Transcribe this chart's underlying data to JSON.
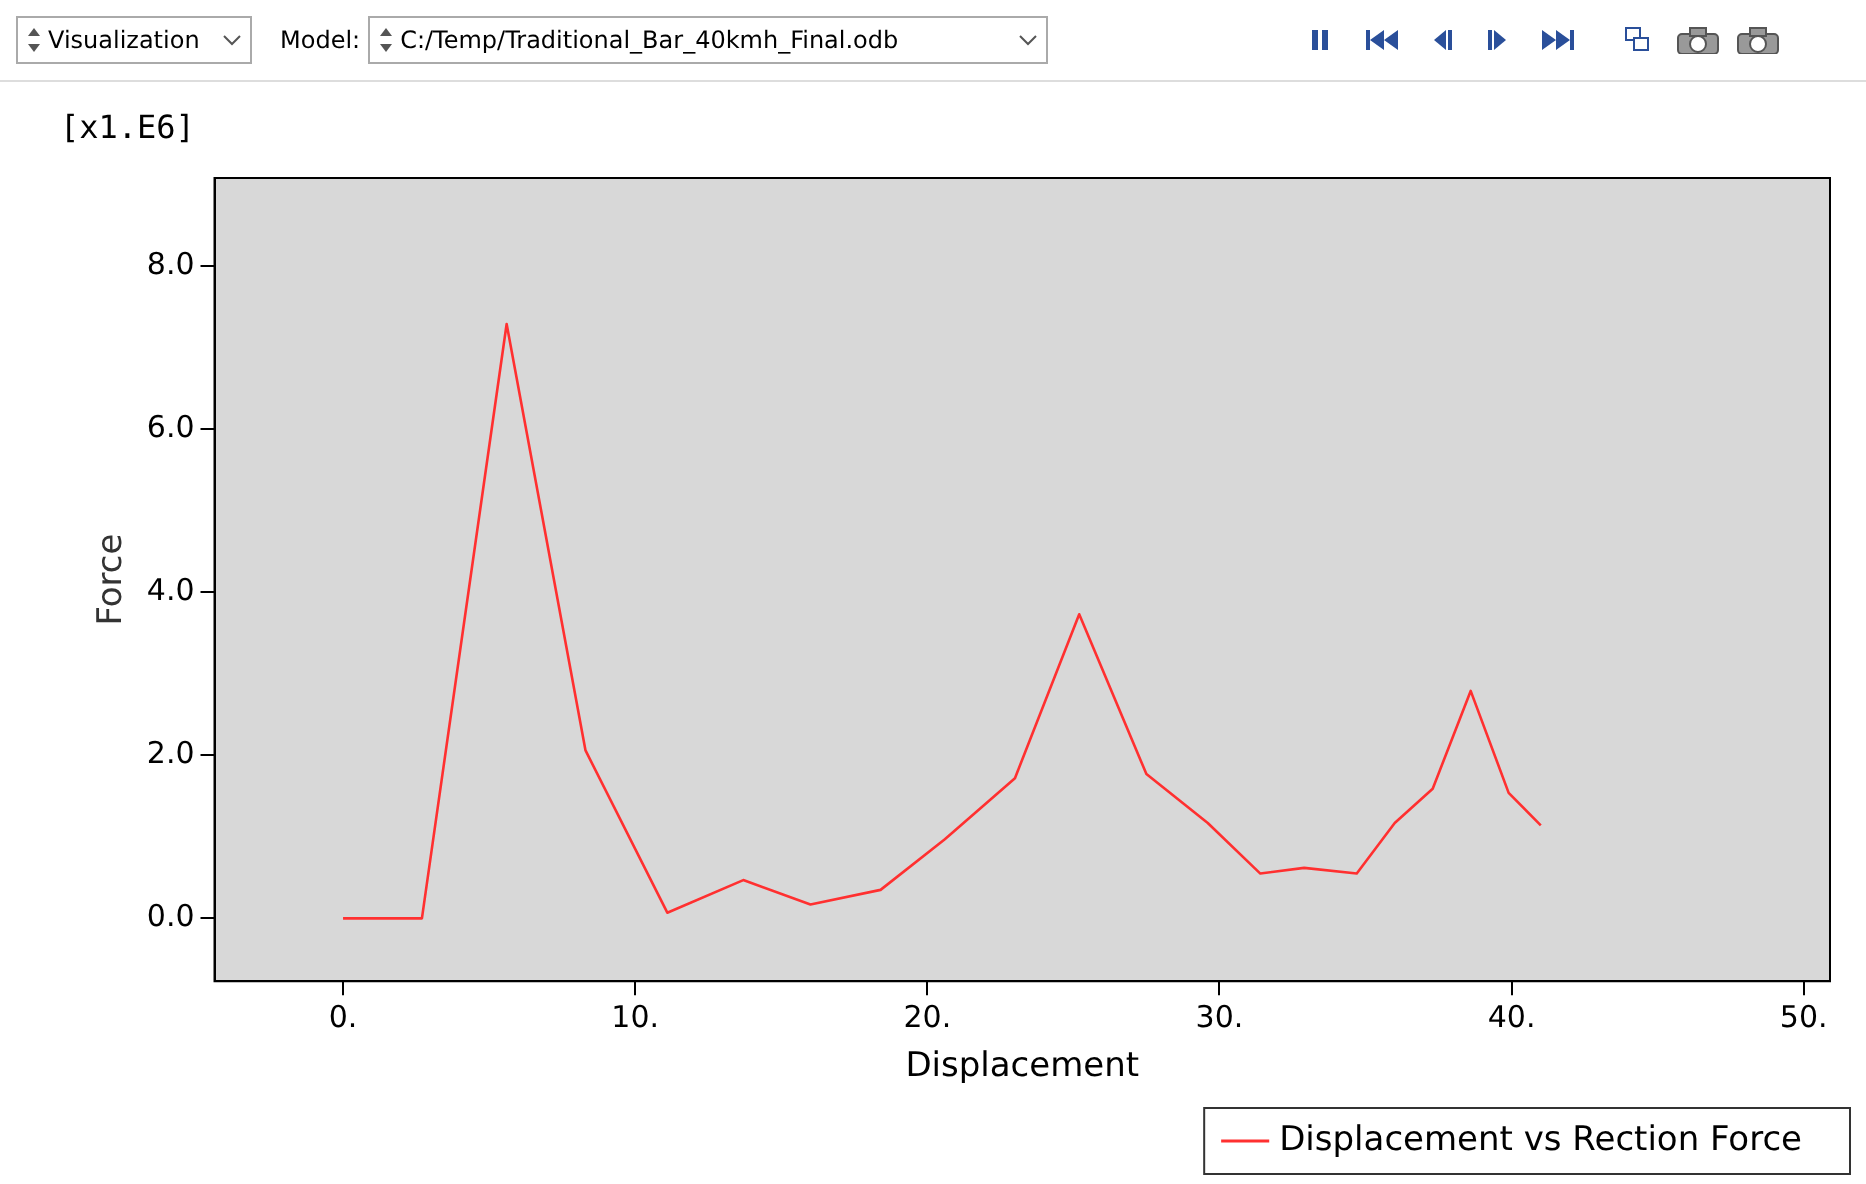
{
  "chart_data": {
    "type": "line",
    "xlabel": "Displacement",
    "ylabel": "Force",
    "annotations": [
      "[x1.E6]",
      "Visualization",
      "Model:",
      "C:/Temp/Traditional_Bar_40kmh_Final.odb"
    ],
    "series": [
      {
        "name": "Displacement vs Rection Force",
        "color": "#ff3030",
        "x": [
          0,
          2.7,
          5.6,
          8.3,
          11.1,
          13.7,
          16.0,
          18.4,
          20.6,
          23.0,
          25.2,
          27.5,
          29.6,
          31.4,
          32.9,
          34.7,
          36.0,
          37.3,
          38.6,
          39.9,
          41.0
        ],
        "values": [
          0,
          0,
          7.29,
          2.06,
          0.07,
          0.47,
          0.17,
          0.35,
          0.97,
          1.72,
          3.73,
          1.77,
          1.17,
          0.55,
          0.62,
          0.55,
          1.17,
          1.59,
          2.79,
          1.54,
          1.14
        ]
      }
    ],
    "xlim": [
      -4.4,
      50.9
    ],
    "ylim": [
      -0.77,
      9.08
    ],
    "xticks": [
      {
        "value": 0,
        "label": "0."
      },
      {
        "value": 10,
        "label": "10."
      },
      {
        "value": 20,
        "label": "20."
      },
      {
        "value": 30,
        "label": "30."
      },
      {
        "value": 40,
        "label": "40."
      },
      {
        "value": 50,
        "label": "50."
      }
    ],
    "yticks": [
      {
        "value": 0,
        "label": "0.0"
      },
      {
        "value": 2,
        "label": "2.0"
      },
      {
        "value": 4,
        "label": "4.0"
      },
      {
        "value": 6,
        "label": "6.0"
      },
      {
        "value": 8,
        "label": "8.0"
      }
    ],
    "legend": "bottom right",
    "marker": "none",
    "line_style": "solid"
  }
}
